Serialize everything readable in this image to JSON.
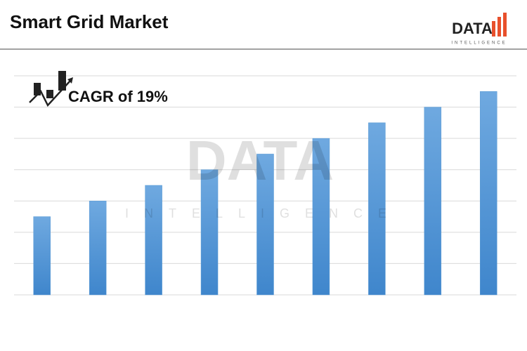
{
  "chart_data": {
    "type": "bar",
    "title": "Smart Grid Market",
    "annotation": "CAGR of 19%",
    "logo": {
      "name": "DATA",
      "tagline": "INTELLIGENCE"
    },
    "categories": [
      null,
      null,
      null,
      null,
      null,
      null,
      null,
      null,
      null
    ],
    "values": [
      2.5,
      3,
      3.5,
      4,
      4.5,
      5,
      5.5,
      6,
      6.5
    ],
    "color": "#5b9bd5",
    "ylim": [
      0,
      7
    ],
    "yticks": [
      0,
      1,
      2,
      3,
      4,
      5,
      6,
      7
    ],
    "grid": true
  }
}
